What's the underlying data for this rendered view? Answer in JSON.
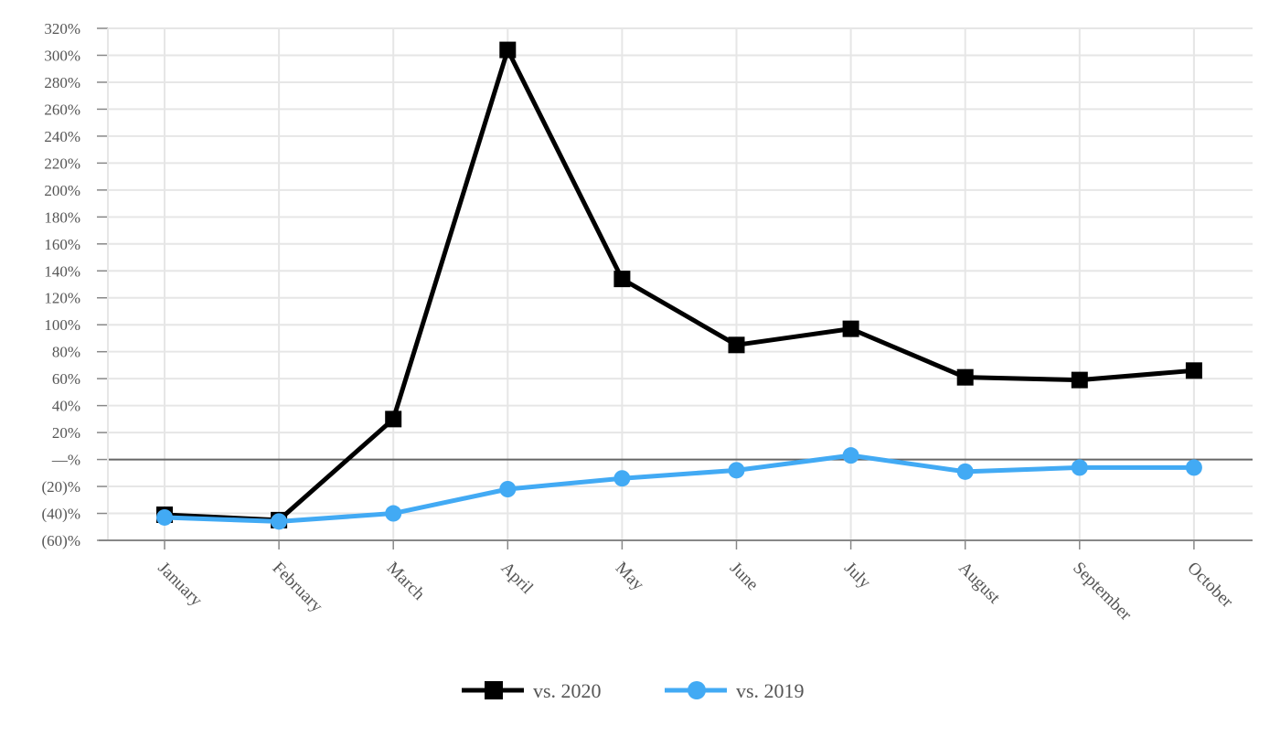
{
  "chart_data": {
    "type": "line",
    "categories": [
      "January",
      "February",
      "March",
      "April",
      "May",
      "June",
      "July",
      "August",
      "September",
      "October"
    ],
    "series": [
      {
        "name": "vs. 2020",
        "color": "#000000",
        "marker": "square",
        "values": [
          -41,
          -45,
          30,
          304,
          134,
          85,
          97,
          61,
          59,
          66
        ]
      },
      {
        "name": "vs. 2019",
        "color": "#42aaf4",
        "marker": "circle",
        "values": [
          -43,
          -46,
          -40,
          -22,
          -14,
          -8,
          3,
          -9,
          -6,
          -6
        ]
      }
    ],
    "ylim": [
      -60,
      320
    ],
    "yticks": [
      {
        "value": 320,
        "label": "320%"
      },
      {
        "value": 300,
        "label": "300%"
      },
      {
        "value": 280,
        "label": "280%"
      },
      {
        "value": 260,
        "label": "260%"
      },
      {
        "value": 240,
        "label": "240%"
      },
      {
        "value": 220,
        "label": "220%"
      },
      {
        "value": 200,
        "label": "200%"
      },
      {
        "value": 180,
        "label": "180%"
      },
      {
        "value": 160,
        "label": "160%"
      },
      {
        "value": 140,
        "label": "140%"
      },
      {
        "value": 120,
        "label": "120%"
      },
      {
        "value": 100,
        "label": "100%"
      },
      {
        "value": 80,
        "label": "80%"
      },
      {
        "value": 60,
        "label": "60%"
      },
      {
        "value": 40,
        "label": "40%"
      },
      {
        "value": 20,
        "label": "20%"
      },
      {
        "value": 0,
        "label": "—%"
      },
      {
        "value": -20,
        "label": "(20)%"
      },
      {
        "value": -40,
        "label": "(40)%"
      },
      {
        "value": -60,
        "label": "(60)%"
      }
    ],
    "title": "",
    "xlabel": "",
    "ylabel": "",
    "grid": true,
    "legend": {
      "position": "bottom-center"
    },
    "colors": {
      "grid": "#e6e6e6",
      "axis": "#888888",
      "zero_line": "#666666"
    }
  }
}
